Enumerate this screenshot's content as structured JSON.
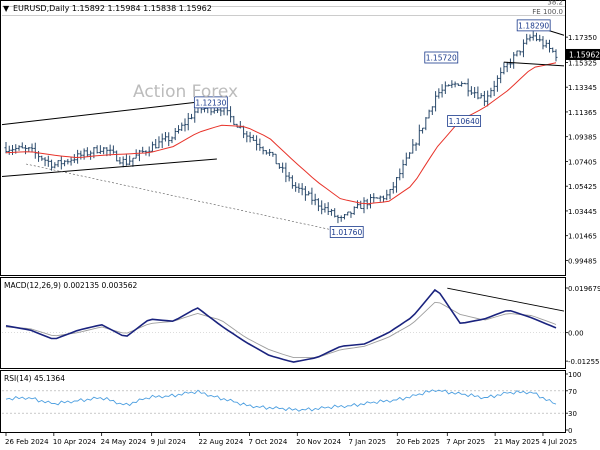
{
  "header": {
    "collapse_glyph": "▼",
    "symbol_line": "EURUSD,Daily  1.15892 1.15984 1.15838 1.15962"
  },
  "watermark": "Action Forex",
  "colors": {
    "price_bars": "#2b4a6b",
    "ma_line": "#e8332a",
    "macd_line": "#1a237e",
    "signal_line": "#9e9e9e",
    "rsi_line": "#4d9fe0",
    "trendline": "#000000",
    "label_border": "#1a3a8c",
    "current_price_bg": "#000000"
  },
  "chart_data": [
    {
      "type": "candlestick",
      "title": "EURUSD,Daily",
      "ohlc_last": {
        "open": 1.15892,
        "high": 1.15984,
        "low": 1.15838,
        "close": 1.15962
      },
      "current_price_label": "1.15962",
      "ylim": [
        0.984,
        1.2
      ],
      "y_tick_labels": [
        "1.17350",
        "1.15325",
        "1.13345",
        "1.11365",
        "1.09385",
        "1.07405",
        "1.05425",
        "1.03445",
        "1.01465",
        "0.99485"
      ],
      "y_ticks": [
        1.1735,
        1.15325,
        1.13345,
        1.11365,
        1.09385,
        1.07405,
        1.05425,
        1.03445,
        1.01465,
        0.99485
      ],
      "x_tick_labels": [
        "26 Feb 2024",
        "10 Apr 2024",
        "24 May 2024",
        "9 Jul 2024",
        "22 Aug 2024",
        "7 Oct 2024",
        "20 Nov 2024",
        "7 Jan 2025",
        "20 Feb 2025",
        "7 Apr 2025",
        "21 May 2025",
        "4 Jul 2025"
      ],
      "fib_levels": [
        {
          "label": "38.2",
          "value": 1.198
        },
        {
          "label": "FE 100.0",
          "value": 1.1906
        }
      ],
      "annotations": [
        {
          "label": "1.12130",
          "value": 1.1213
        },
        {
          "label": "1.01760",
          "value": 1.0176
        },
        {
          "label": "1.15720",
          "value": 1.1572
        },
        {
          "label": "1.10640",
          "value": 1.1064
        },
        {
          "label": "1.18290",
          "value": 1.1829
        }
      ],
      "x_dates": [
        "2024-02-26",
        "2024-03-18",
        "2024-04-10",
        "2024-05-02",
        "2024-05-24",
        "2024-06-16",
        "2024-07-09",
        "2024-07-31",
        "2024-08-22",
        "2024-09-14",
        "2024-10-07",
        "2024-10-29",
        "2024-11-20",
        "2024-12-15",
        "2025-01-07",
        "2025-01-29",
        "2025-02-20",
        "2025-03-14",
        "2025-04-07",
        "2025-04-29",
        "2025-05-21",
        "2025-06-12",
        "2025-07-04",
        "2025-07-16"
      ],
      "close_values": [
        1.085,
        1.083,
        1.071,
        1.078,
        1.085,
        1.073,
        1.085,
        1.094,
        1.116,
        1.117,
        1.097,
        1.081,
        1.055,
        1.041,
        1.027,
        1.041,
        1.047,
        1.084,
        1.128,
        1.138,
        1.124,
        1.152,
        1.175,
        1.1596
      ],
      "ma_values": [
        1.081,
        1.082,
        1.079,
        1.077,
        1.079,
        1.08,
        1.081,
        1.086,
        1.097,
        1.103,
        1.102,
        1.093,
        1.075,
        1.058,
        1.044,
        1.04,
        1.042,
        1.055,
        1.085,
        1.107,
        1.117,
        1.131,
        1.149,
        1.153
      ]
    },
    {
      "type": "line",
      "title": "MACD(12,26,9) 0.002135 0.003562",
      "ylim": [
        -0.0147,
        0.0232
      ],
      "y_tick_labels": [
        "0.019679",
        "0.00",
        "-0.012552"
      ],
      "y_ticks": [
        0.019679,
        0.0,
        -0.012552
      ],
      "series": [
        {
          "values": [
            0.003,
            0.0012,
            -0.003,
            0.001,
            0.0035,
            -0.002,
            0.006,
            0.005,
            0.011,
            0.003,
            -0.004,
            -0.01,
            -0.013,
            -0.011,
            -0.006,
            -0.005,
            0.0,
            0.007,
            0.0196,
            0.004,
            0.006,
            0.01,
            0.0065,
            0.0021
          ]
        },
        {
          "values": [
            0.0025,
            0.0018,
            -0.0015,
            0.0,
            0.0025,
            -0.0005,
            0.004,
            0.005,
            0.0085,
            0.0055,
            -0.002,
            -0.0075,
            -0.011,
            -0.011,
            -0.0075,
            -0.006,
            -0.002,
            0.004,
            0.014,
            0.008,
            0.0055,
            0.0085,
            0.0075,
            0.0036
          ]
        }
      ],
      "trendline": [
        {
          "x": "2025-04-07",
          "y": 0.0196
        },
        {
          "x": "2025-07-16",
          "y": 0.0095
        }
      ]
    },
    {
      "type": "line",
      "title": "RSI(14) 45.1364",
      "ylim": [
        0,
        100
      ],
      "y_tick_labels": [
        "100",
        "70",
        "30",
        "0"
      ],
      "y_ticks": [
        100,
        70,
        30,
        0
      ],
      "levels": [
        70,
        30
      ],
      "series": [
        {
          "values": [
            55,
            58,
            46,
            53,
            57,
            45,
            58,
            62,
            68,
            57,
            44,
            40,
            36,
            38,
            42,
            47,
            52,
            60,
            72,
            64,
            58,
            66,
            68,
            45.1364
          ]
        }
      ]
    }
  ]
}
